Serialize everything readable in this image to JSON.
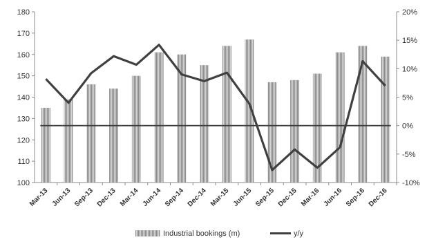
{
  "chart_data": {
    "type": "bar",
    "categories": [
      "Mar-13",
      "Jun-13",
      "Sep-13",
      "Dec-13",
      "Mar-14",
      "Jun-14",
      "Sep-14",
      "Dec-14",
      "Mar-15",
      "Jun-15",
      "Sep-15",
      "Dec-15",
      "Mar-16",
      "Jun-16",
      "Sep-16",
      "Dec-16"
    ],
    "series": [
      {
        "name": "Industrial bookings (m)",
        "type": "bar",
        "axis": "left",
        "color": "#b8b8b8",
        "values": [
          135,
          139,
          146,
          144,
          150,
          161,
          160,
          155,
          164,
          167,
          147,
          148,
          151,
          161,
          164,
          159
        ]
      },
      {
        "name": "y/y",
        "type": "line",
        "axis": "right",
        "color": "#404040",
        "values": [
          8.2,
          4.0,
          9.2,
          12.2,
          10.7,
          14.2,
          9.0,
          7.8,
          9.3,
          3.8,
          -7.8,
          -4.2,
          -7.4,
          -3.8,
          11.3,
          7.0
        ]
      }
    ],
    "yleft": {
      "min": 100,
      "max": 180,
      "step": 10,
      "ticks": [
        "100",
        "110",
        "120",
        "130",
        "140",
        "150",
        "160",
        "170",
        "180"
      ]
    },
    "yright": {
      "min": -10,
      "max": 20,
      "step": 5,
      "ticks": [
        "-10%",
        "-5%",
        "0%",
        "5%",
        "10%",
        "15%",
        "20%"
      ]
    },
    "reference_line": {
      "axis": "right",
      "value": 0
    },
    "grid": false,
    "legend": {
      "position": "bottom",
      "entries": [
        "Industrial bookings (m)",
        "y/y"
      ]
    },
    "title": "",
    "xlabel": "",
    "ylabel": ""
  }
}
